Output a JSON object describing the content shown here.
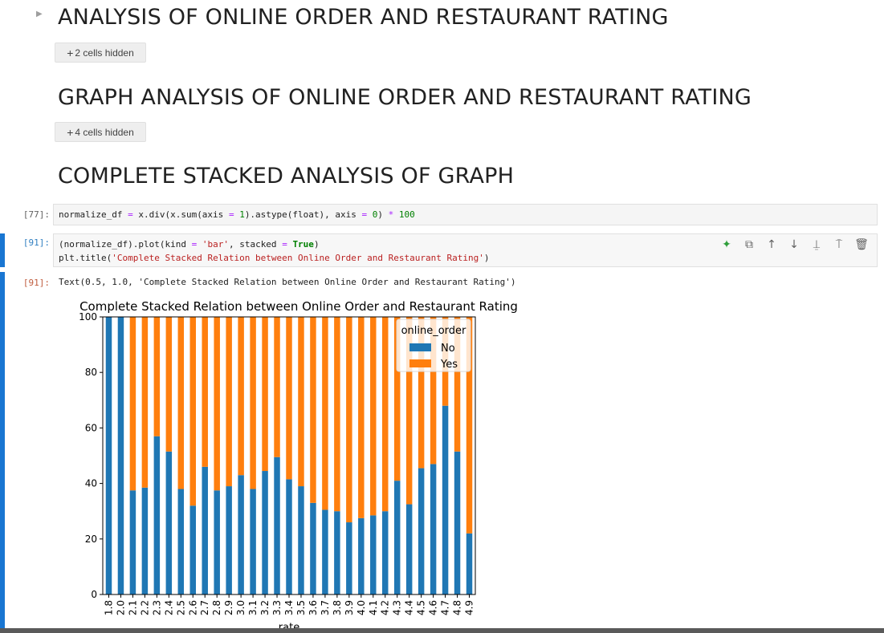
{
  "sections": [
    {
      "heading": "ANALYSIS OF ONLINE ORDER AND RESTAURANT RATING",
      "hidden_label": "2 cells hidden"
    },
    {
      "heading": "GRAPH ANALYSIS OF ONLINE ORDER AND RESTAURANT RATING",
      "hidden_label": "4 cells hidden"
    },
    {
      "heading": "COMPLETE STACKED ANALYSIS OF GRAPH"
    }
  ],
  "cells": [
    {
      "prompt": "[77]:",
      "code_lines": [
        "normalize_df = x.div(x.sum(axis = 1).astype(float), axis = 0) * 100"
      ]
    },
    {
      "prompt": "[91]:",
      "code_lines": [
        "(normalize_df).plot(kind = 'bar', stacked = True)",
        "plt.title('Complete Stacked Relation between Online Order and Restaurant Rating')"
      ]
    }
  ],
  "output": {
    "prompt": "[91]:",
    "text": "Text(0.5, 1.0, 'Complete Stacked Relation between Online Order and Restaurant Rating')"
  },
  "toolbar": [
    "sparkle-icon",
    "duplicate-icon",
    "move-up-icon",
    "move-down-icon",
    "insert-above-icon",
    "insert-below-icon",
    "delete-icon"
  ],
  "chart_data": {
    "type": "bar",
    "stacked": true,
    "title": "Complete Stacked Relation between Online Order and Restaurant Rating",
    "xlabel": "rate",
    "ylabel": "",
    "ylim": [
      0,
      100
    ],
    "yticks": [
      0,
      20,
      40,
      60,
      80,
      100
    ],
    "categories": [
      "1.8",
      "2.0",
      "2.1",
      "2.2",
      "2.3",
      "2.4",
      "2.5",
      "2.6",
      "2.7",
      "2.8",
      "2.9",
      "3.0",
      "3.1",
      "3.2",
      "3.3",
      "3.4",
      "3.5",
      "3.6",
      "3.7",
      "3.8",
      "3.9",
      "4.0",
      "4.1",
      "4.2",
      "4.3",
      "4.4",
      "4.5",
      "4.6",
      "4.7",
      "4.8",
      "4.9"
    ],
    "legend": {
      "title": "online_order",
      "position": "top-right"
    },
    "series": [
      {
        "name": "No",
        "color": "#1f77b4",
        "values": [
          100,
          100,
          37.5,
          38.5,
          57,
          51.5,
          38,
          32,
          46,
          37.5,
          39,
          43,
          38,
          44.5,
          49.5,
          41.5,
          39,
          33,
          30.5,
          30,
          26,
          27.5,
          28.5,
          30,
          41,
          32.5,
          45.5,
          47,
          68,
          51.5,
          22
        ]
      },
      {
        "name": "Yes",
        "color": "#ff7f0e",
        "values": [
          0,
          0,
          62.5,
          61.5,
          43,
          48.5,
          62,
          68,
          54,
          62.5,
          61,
          57,
          62,
          55.5,
          50.5,
          58.5,
          61,
          67,
          69.5,
          70,
          74,
          72.5,
          71.5,
          70,
          59,
          67.5,
          54.5,
          53,
          32,
          48.5,
          78
        ]
      }
    ]
  }
}
